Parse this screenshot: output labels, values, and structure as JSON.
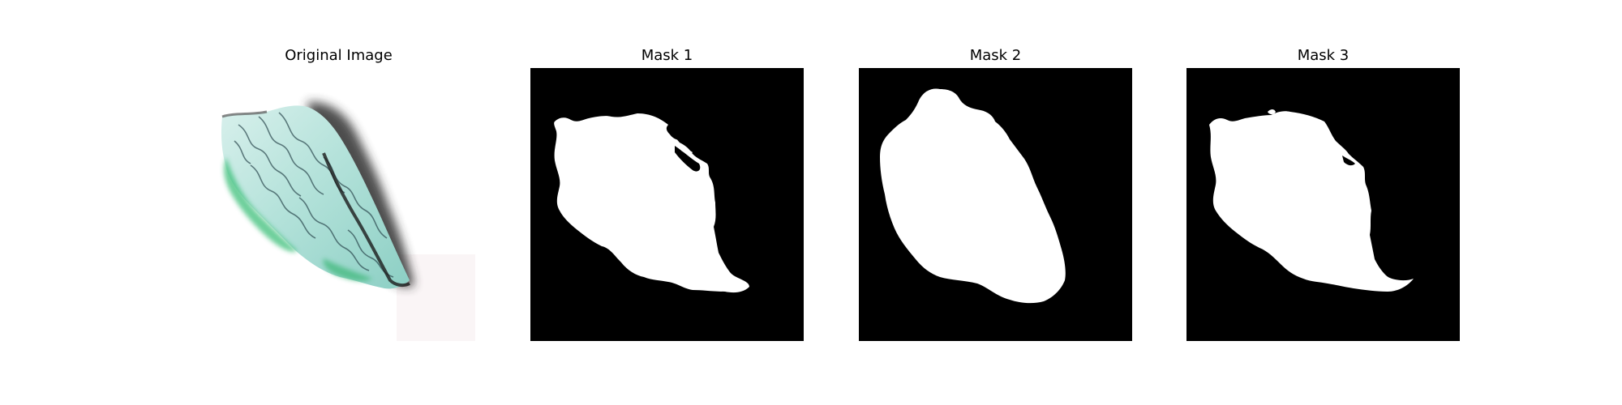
{
  "panels": [
    {
      "title": "Original Image"
    },
    {
      "title": "Mask 1"
    },
    {
      "title": "Mask 2"
    },
    {
      "title": "Mask 3"
    }
  ],
  "colors": {
    "figure_background": "#ffffff",
    "mask_background": "#000000",
    "mask_foreground": "#ffffff",
    "tissue_teal": "#a8d8d0",
    "tissue_green": "#3cc07a",
    "shadow": "#3a3a3a"
  }
}
